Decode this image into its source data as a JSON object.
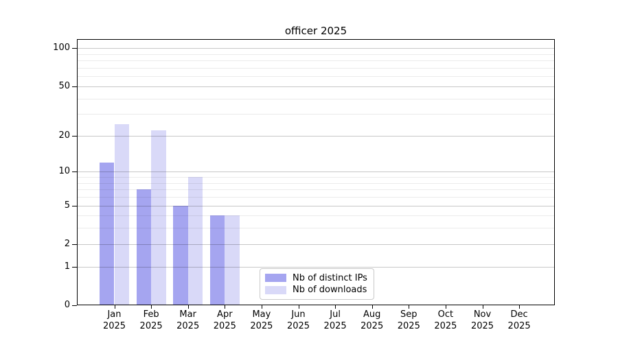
{
  "figure": {
    "title": "officer 2025"
  },
  "chart_data": {
    "type": "bar",
    "title": "officer 2025",
    "x_months": [
      "Jan",
      "Feb",
      "Mar",
      "Apr",
      "May",
      "Jun",
      "Jul",
      "Aug",
      "Sep",
      "Oct",
      "Nov",
      "Dec"
    ],
    "x_year": "2025",
    "series": [
      {
        "name": "Nb of distinct IPs",
        "color": "#a5a5f0",
        "values": [
          12,
          7,
          5,
          4,
          0,
          0,
          0,
          0,
          0,
          0,
          0,
          0
        ]
      },
      {
        "name": "Nb of downloads",
        "color": "#d9d9f8",
        "values": [
          25,
          22,
          9,
          4,
          0,
          0,
          0,
          0,
          0,
          0,
          0,
          0
        ]
      }
    ],
    "yscale": "log1p",
    "ylim": [
      0,
      118
    ],
    "y_major_ticks": [
      0,
      1,
      2,
      5,
      10,
      20,
      50,
      100
    ],
    "y_minor_gridlines": [
      3,
      4,
      6,
      7,
      8,
      9,
      30,
      40,
      60,
      70,
      80,
      90
    ],
    "grid": true,
    "legend_position": "bottom-center",
    "colors": {
      "bar_distinct_ips": "#a5a5f0",
      "bar_downloads": "#d9d9f8",
      "major_grid": "#c7c7c7",
      "minor_grid": "#ebebeb",
      "axis": "#000000",
      "background": "#ffffff"
    }
  }
}
